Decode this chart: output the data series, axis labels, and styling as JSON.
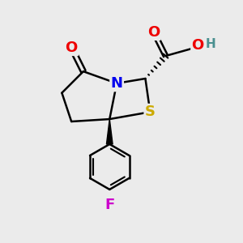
{
  "bg_color": "#ebebeb",
  "atom_colors": {
    "C": "#000000",
    "N": "#0000ee",
    "O": "#ee0000",
    "S": "#ccaa00",
    "F": "#cc00cc",
    "H": "#4a9090"
  },
  "bond_color": "#000000",
  "bond_width": 1.8,
  "figsize": [
    3.0,
    3.0
  ],
  "dpi": 100,
  "xlim": [
    0,
    10
  ],
  "ylim": [
    0,
    10
  ]
}
